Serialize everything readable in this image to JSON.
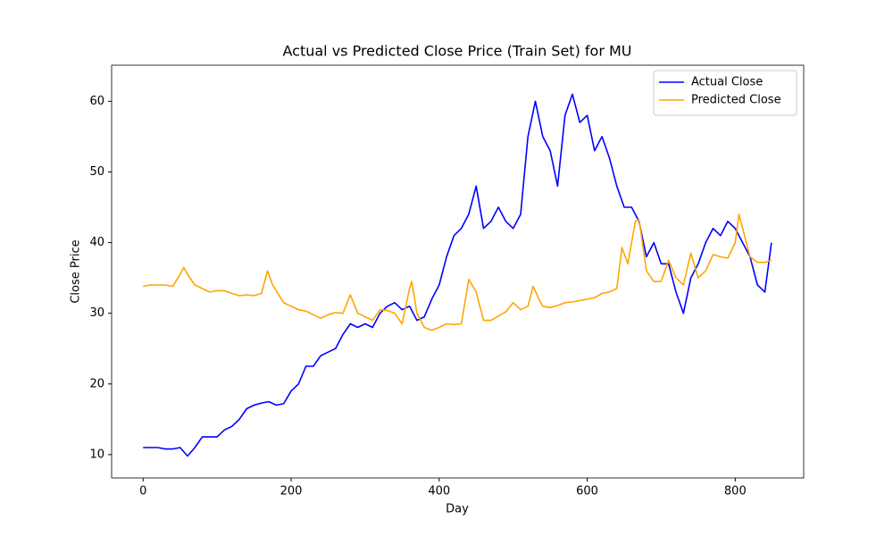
{
  "chart_data": {
    "type": "line",
    "title": "Actual vs Predicted Close Price (Train Set) for MU",
    "x_label": "Day",
    "y_label": "Close Price",
    "xlim": [
      -42.5,
      892.5
    ],
    "ylim": [
      6.7,
      65.1
    ],
    "xticks": [
      0,
      200,
      400,
      600,
      800
    ],
    "yticks": [
      10,
      20,
      30,
      40,
      50,
      60
    ],
    "grid": false,
    "legend": "upper right",
    "series": [
      {
        "name": "Actual Close",
        "color": "#0000ff",
        "x": [
          0,
          10,
          20,
          30,
          40,
          50,
          60,
          70,
          80,
          90,
          100,
          110,
          120,
          130,
          140,
          150,
          160,
          170,
          180,
          190,
          200,
          210,
          220,
          230,
          240,
          250,
          260,
          270,
          280,
          290,
          300,
          310,
          320,
          330,
          340,
          350,
          360,
          370,
          380,
          390,
          400,
          410,
          420,
          430,
          440,
          450,
          460,
          470,
          480,
          490,
          500,
          510,
          520,
          530,
          540,
          550,
          560,
          570,
          580,
          590,
          600,
          610,
          620,
          630,
          640,
          650,
          660,
          670,
          680,
          690,
          700,
          710,
          720,
          730,
          740,
          750,
          760,
          770,
          780,
          790,
          800,
          810,
          820,
          830,
          840,
          849
        ],
        "values": [
          11,
          11,
          11,
          10.8,
          10.8,
          11,
          9.8,
          11,
          12.5,
          12.5,
          12.5,
          13.5,
          14,
          15,
          16.5,
          17,
          17.3,
          17.5,
          17,
          17.2,
          19,
          20,
          22.5,
          22.5,
          24,
          24.5,
          25,
          27,
          28.5,
          28,
          28.5,
          28,
          30,
          31,
          31.5,
          30.5,
          31,
          29,
          29.5,
          32,
          34,
          38,
          41,
          42,
          44,
          48,
          42,
          43,
          45,
          43,
          42,
          44,
          55,
          60,
          55,
          53,
          48,
          58,
          61,
          57,
          58,
          53,
          55,
          52,
          48,
          45,
          45,
          43,
          38,
          40,
          37,
          37,
          33,
          30,
          35,
          37,
          40,
          42,
          41,
          43,
          42,
          40,
          38,
          34,
          33,
          40
        ]
      },
      {
        "name": "Predicted Close",
        "color": "#ffa500",
        "x": [
          0,
          10,
          20,
          30,
          40,
          50,
          55,
          60,
          70,
          80,
          90,
          100,
          110,
          120,
          130,
          140,
          150,
          160,
          168,
          175,
          190,
          200,
          210,
          220,
          230,
          240,
          250,
          260,
          270,
          280,
          290,
          300,
          310,
          320,
          330,
          340,
          350,
          360,
          363,
          370,
          380,
          390,
          400,
          410,
          420,
          430,
          440,
          450,
          460,
          470,
          480,
          490,
          500,
          510,
          520,
          527,
          535,
          540,
          550,
          560,
          570,
          580,
          590,
          600,
          610,
          620,
          630,
          640,
          647,
          655,
          665,
          670,
          680,
          690,
          700,
          710,
          720,
          730,
          740,
          750,
          760,
          770,
          780,
          790,
          800,
          805,
          810,
          820,
          830,
          840,
          849
        ],
        "values": [
          33.8,
          34,
          34,
          34,
          33.8,
          35.5,
          36.5,
          35.5,
          34,
          33.5,
          33,
          33.2,
          33.2,
          32.8,
          32.5,
          32.6,
          32.5,
          32.8,
          36,
          34,
          31.5,
          31,
          30.5,
          30.3,
          29.8,
          29.3,
          29.8,
          30.1,
          30,
          32.6,
          30,
          29.5,
          29,
          30.5,
          30.4,
          30,
          28.5,
          33.5,
          34.5,
          30,
          28,
          27.6,
          28,
          28.5,
          28.4,
          28.5,
          34.8,
          33,
          29,
          29,
          29.6,
          30.2,
          31.5,
          30.5,
          31,
          33.8,
          32,
          31,
          30.8,
          31.1,
          31.5,
          31.6,
          31.8,
          32,
          32.2,
          32.8,
          33,
          33.5,
          39.3,
          37,
          43,
          43.3,
          36,
          34.5,
          34.5,
          37.5,
          35,
          34,
          38.5,
          35,
          36,
          38.3,
          38,
          37.8,
          40,
          44,
          42,
          38,
          37.2,
          37.2,
          37.5
        ]
      }
    ]
  }
}
